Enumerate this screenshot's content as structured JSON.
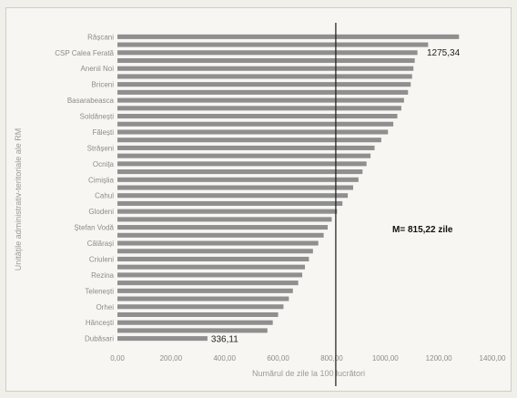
{
  "chart_data": {
    "type": "bar",
    "orientation": "horizontal",
    "categories": [
      "Râșcani",
      "",
      "CSP Calea Ferată",
      "",
      "Anenii Noi",
      "",
      "Briceni",
      "",
      "Basarabeasca",
      "",
      "Soldănești",
      "",
      "Fălești",
      "",
      "Strășeni",
      "",
      "Ocnița",
      "",
      "Cimișlia",
      "",
      "Cahul",
      "",
      "Glodeni",
      "",
      "Ștefan Vodă",
      "",
      "Călărași",
      "",
      "Criuleni",
      "",
      "Rezina",
      "",
      "Telenești",
      "",
      "Orhei",
      "",
      "Hâncești",
      "",
      "Dubăsari"
    ],
    "values": [
      1275.34,
      1160,
      1120,
      1110,
      1105,
      1100,
      1095,
      1085,
      1070,
      1060,
      1045,
      1030,
      1010,
      985,
      960,
      945,
      930,
      915,
      900,
      880,
      860,
      840,
      820,
      800,
      785,
      770,
      750,
      730,
      715,
      700,
      690,
      675,
      655,
      640,
      620,
      600,
      580,
      560,
      336.11
    ],
    "xlabel": "Numărul de zile la 100 lucrători",
    "ylabel": "Unitățile administrativ-teritoriale ale RM",
    "xlim": [
      0,
      1400
    ],
    "xticks": [
      "0,00",
      "200,00",
      "400,00",
      "600,00",
      "800,00",
      "1000,00",
      "1200,00",
      "1400,00"
    ],
    "mean_value": 815.22,
    "annotations": {
      "max_label": "1275,34",
      "min_label": "336,11",
      "mean_label": "M= 815,22 zile"
    },
    "bar_color": "#8f8f8f",
    "mean_line_color": "#1a1a1a"
  }
}
